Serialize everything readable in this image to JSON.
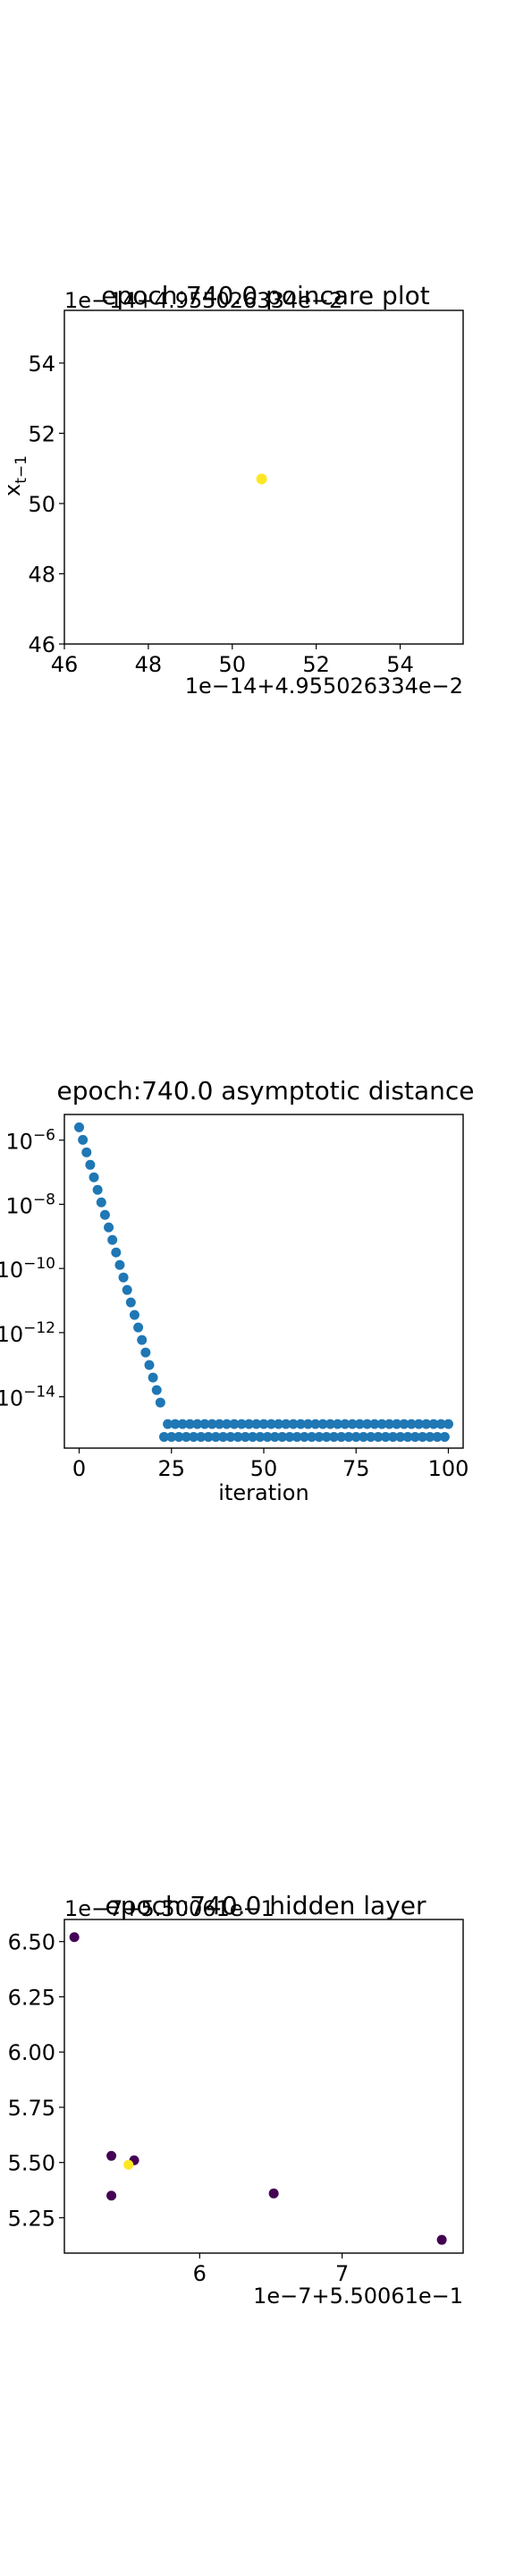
{
  "chart_data": [
    {
      "type": "scatter",
      "title": "epoch:740.0 poincare plot",
      "xlabel": "",
      "ylabel": "x_{t-1}",
      "x_offset_text": "1e−14+4.955026334e−2",
      "y_offset_text": "1e−14+4.955026334e−2",
      "xlim": [
        46,
        55.5
      ],
      "ylim": [
        46,
        55.5
      ],
      "xticks": [
        46,
        48,
        50,
        52,
        54
      ],
      "yticks": [
        46,
        48,
        50,
        52,
        54
      ],
      "points": [
        {
          "x": 50.7,
          "y": 50.7,
          "color": "#fde725"
        }
      ]
    },
    {
      "type": "scatter",
      "title": "epoch:740.0 asymptotic distance",
      "xlabel": "iteration",
      "ylabel": "",
      "yscale": "log",
      "xlim": [
        -4,
        104
      ],
      "ylim_exp": [
        -15.6,
        -5.2
      ],
      "xticks": [
        0,
        25,
        50,
        75,
        100
      ],
      "yticks_exp": [
        -6,
        -8,
        -10,
        -12,
        -14
      ],
      "ytick_labels": [
        "10^−6",
        "10^−8",
        "10^−10",
        "10^−12",
        "10^−14"
      ],
      "color": "#1f77b4",
      "decay": {
        "start_exp": -5.6,
        "slope_per_iter": -0.39,
        "end_iter": 22
      },
      "floor": {
        "low_exp": -15.25,
        "high_exp": -14.85,
        "from_iter": 23,
        "to_iter": 100
      }
    },
    {
      "type": "scatter",
      "title": "epoch:740.0 hidden layer",
      "xlabel": "",
      "ylabel": "",
      "x_offset_text": "1e−7+5.50061e−1",
      "y_offset_text": "1e−7+5.50061e−1",
      "xlim": [
        5.05,
        7.85
      ],
      "ylim": [
        5.09,
        6.6
      ],
      "xticks": [
        6,
        7
      ],
      "yticks": [
        5.25,
        5.5,
        5.75,
        6.0,
        6.25,
        6.5
      ],
      "ytick_labels": [
        "5.25",
        "5.50",
        "5.75",
        "6.00",
        "6.25",
        "6.50"
      ],
      "points": [
        {
          "x": 5.12,
          "y": 6.52,
          "color": "#440154"
        },
        {
          "x": 5.38,
          "y": 5.53,
          "color": "#440154"
        },
        {
          "x": 5.38,
          "y": 5.35,
          "color": "#440154"
        },
        {
          "x": 5.54,
          "y": 5.51,
          "color": "#440154"
        },
        {
          "x": 6.52,
          "y": 5.36,
          "color": "#440154"
        },
        {
          "x": 7.7,
          "y": 5.15,
          "color": "#440154"
        },
        {
          "x": 5.5,
          "y": 5.49,
          "color": "#fde725"
        }
      ]
    }
  ]
}
